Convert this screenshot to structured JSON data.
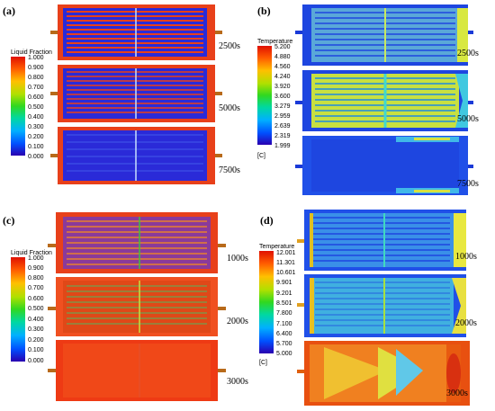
{
  "panels": [
    {
      "label": "(a)",
      "colorbar": {
        "title": "Liquid Fraction",
        "ticks": [
          "1.000",
          "0.900",
          "0.800",
          "0.700",
          "0.600",
          "0.500",
          "0.400",
          "0.300",
          "0.200",
          "0.100",
          "0.000"
        ],
        "unit": ""
      },
      "times": [
        "2500s",
        "5000s",
        "7500s"
      ],
      "frames": [
        {
          "fill_level": 0.75
        },
        {
          "fill_level": 0.35
        },
        {
          "fill_level": 0.05
        }
      ]
    },
    {
      "label": "(b)",
      "colorbar": {
        "title": "Temperature",
        "ticks": [
          "5.200",
          "4.880",
          "4.560",
          "4.240",
          "3.920",
          "3.600",
          "3.279",
          "2.959",
          "2.639",
          "2.319",
          "1.999"
        ],
        "unit": "[C]"
      },
      "times": [
        "2500s",
        "5000s",
        "7500s"
      ],
      "frames": [
        {
          "fill_level": 0.35
        },
        {
          "fill_level": 0.55
        },
        {
          "fill_level": 0.1
        }
      ]
    },
    {
      "label": "(c)",
      "colorbar": {
        "title": "Liquid Fraction",
        "ticks": [
          "1.000",
          "0.900",
          "0.800",
          "0.700",
          "0.600",
          "0.500",
          "0.400",
          "0.300",
          "0.200",
          "0.100",
          "0.000"
        ],
        "unit": ""
      },
      "times": [
        "1000s",
        "2000s",
        "3000s"
      ],
      "frames": [
        {
          "fill_level": 0.5
        },
        {
          "fill_level": 0.85
        },
        {
          "fill_level": 1.0
        }
      ]
    },
    {
      "label": "(d)",
      "colorbar": {
        "title": "Temperature",
        "ticks": [
          "12.001",
          "11.301",
          "10.601",
          "9.901",
          "9.201",
          "8.501",
          "7.800",
          "7.100",
          "6.400",
          "5.700",
          "5.000"
        ],
        "unit": "[C]"
      },
      "times": [
        "1000s",
        "2000s",
        "3000s"
      ],
      "frames": [
        {
          "fill_level": 0.1
        },
        {
          "fill_level": 0.3
        },
        {
          "fill_level": 0.85
        }
      ]
    }
  ],
  "colors": {
    "scale": [
      "#ff0000",
      "#ff6a00",
      "#ffcc00",
      "#b8e000",
      "#40e000",
      "#00e060",
      "#00e0c0",
      "#00a8ff",
      "#0050ff",
      "#1000e0",
      "#2000a0"
    ],
    "background": "#ffffff"
  }
}
